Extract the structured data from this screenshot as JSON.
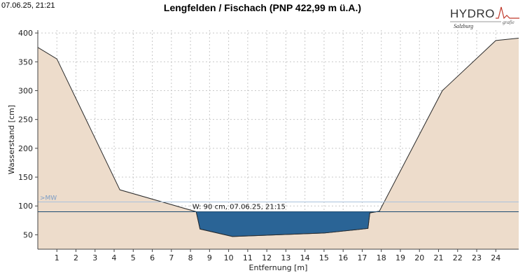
{
  "header": {
    "timestamp": "07.06.25, 21:21",
    "title": "Lengfelden / Fischach (PNP 422,99 m ü.A.)"
  },
  "logo": {
    "text": "HYDRO",
    "subtitle": "Salzburg",
    "tag": "grafie"
  },
  "colors": {
    "terrain_fill": "#eddccb",
    "terrain_line": "#2b2b2b",
    "water_fill": "#2a6496",
    "water_line": "#1d4a70",
    "grid": "#c8c8c8",
    "mw_line": "#a9c1dc",
    "mw_text": "#7a9cc6",
    "logo_red": "#c0392b"
  },
  "chart_data": {
    "type": "area",
    "xlabel": "Entfernung [m]",
    "ylabel": "Wasserstand [cm]",
    "xlim": [
      0,
      25.2
    ],
    "ylim": [
      25,
      405
    ],
    "x_ticks": [
      1,
      2,
      3,
      4,
      5,
      6,
      7,
      8,
      9,
      10,
      11,
      12,
      13,
      14,
      15,
      16,
      17,
      18,
      19,
      20,
      21,
      22,
      23,
      24
    ],
    "y_ticks": [
      50,
      100,
      150,
      200,
      250,
      300,
      350,
      400
    ],
    "grid": true,
    "profile": {
      "x": [
        0,
        1.0,
        4.3,
        8.3,
        8.5,
        10.2,
        15.0,
        17.3,
        17.4,
        17.9,
        21.2,
        24.0,
        25.2
      ],
      "y": [
        375,
        355,
        128,
        90,
        60,
        47,
        53,
        61,
        88,
        91,
        300,
        387,
        391
      ]
    },
    "water_level": {
      "value": 90,
      "label": "W: 90 cm, 07.06.25, 21:15"
    },
    "mw": {
      "value": 107,
      "label": ">MW"
    }
  }
}
